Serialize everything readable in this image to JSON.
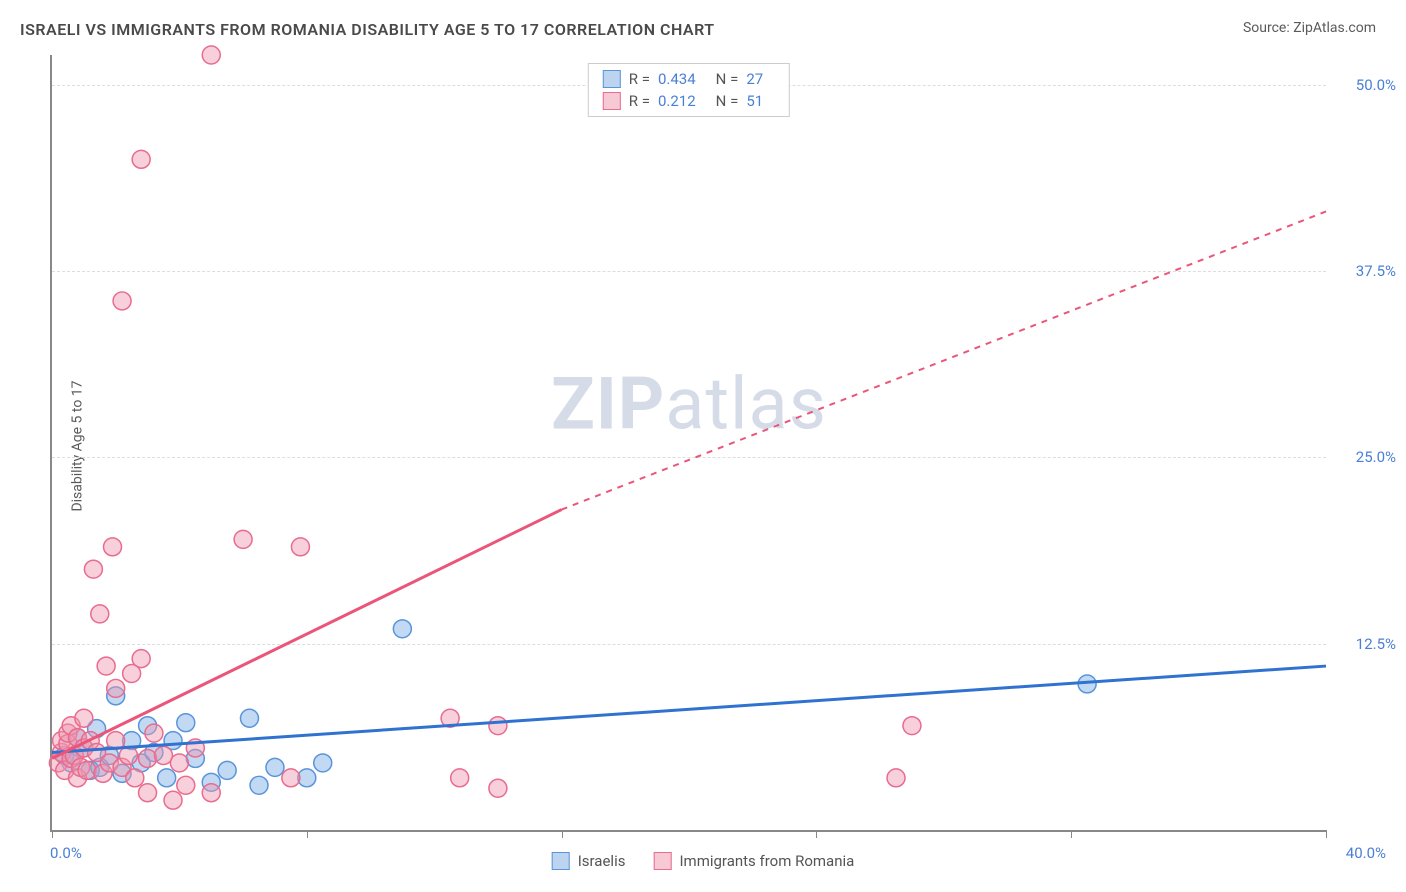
{
  "title": "ISRAELI VS IMMIGRANTS FROM ROMANIA DISABILITY AGE 5 TO 17 CORRELATION CHART",
  "source_label": "Source: ",
  "source_name": "ZipAtlas.com",
  "y_axis_label": "Disability Age 5 to 17",
  "watermark_bold": "ZIP",
  "watermark_light": "atlas",
  "chart": {
    "type": "scatter",
    "xlim": [
      0,
      40
    ],
    "ylim": [
      0,
      52
    ],
    "x_tick_positions": [
      0,
      8,
      16,
      24,
      32,
      40
    ],
    "x_tick_labels_shown": {
      "0": "0.0%",
      "40": "40.0%"
    },
    "y_ticks": [
      12.5,
      25.0,
      37.5,
      50.0
    ],
    "y_tick_labels": [
      "12.5%",
      "25.0%",
      "37.5%",
      "50.0%"
    ],
    "grid_color": "#dddddd",
    "background_color": "#ffffff",
    "axis_color": "#888888",
    "tick_label_color": "#4a7fd6",
    "stats_legend": [
      {
        "swatch_fill": "#bcd4f0",
        "swatch_border": "#5a94da",
        "r_label": "R =",
        "r_value": "0.434",
        "n_label": "N =",
        "n_value": "27"
      },
      {
        "swatch_fill": "#f7c9d4",
        "swatch_border": "#e96b8d",
        "r_label": "R =",
        "r_value": "0.212",
        "n_label": "N =",
        "n_value": "51"
      }
    ],
    "bottom_legend": [
      {
        "swatch_fill": "#bcd4f0",
        "swatch_border": "#5a94da",
        "label": "Israelis"
      },
      {
        "swatch_fill": "#f7c9d4",
        "swatch_border": "#e96b8d",
        "label": "Immigrants from Romania"
      }
    ],
    "series": [
      {
        "name": "israelis",
        "marker_fill": "rgba(120,170,230,0.45)",
        "marker_stroke": "#5a94da",
        "marker_radius": 9,
        "trend_color": "#2f72d0",
        "trend_width": 3,
        "trend_solid_start": [
          0,
          5.2
        ],
        "trend_solid_end": [
          40,
          11.0
        ],
        "trend_dashed_end": null,
        "points": [
          [
            0.4,
            5.0
          ],
          [
            0.6,
            4.5
          ],
          [
            0.8,
            6.2
          ],
          [
            1.0,
            5.5
          ],
          [
            1.2,
            4.0
          ],
          [
            1.4,
            6.8
          ],
          [
            1.5,
            4.2
          ],
          [
            1.8,
            5.0
          ],
          [
            2.0,
            9.0
          ],
          [
            2.2,
            3.8
          ],
          [
            2.5,
            6.0
          ],
          [
            2.8,
            4.5
          ],
          [
            3.0,
            7.0
          ],
          [
            3.2,
            5.2
          ],
          [
            3.6,
            3.5
          ],
          [
            3.8,
            6.0
          ],
          [
            4.2,
            7.2
          ],
          [
            4.5,
            4.8
          ],
          [
            5.0,
            3.2
          ],
          [
            5.5,
            4.0
          ],
          [
            6.2,
            7.5
          ],
          [
            6.5,
            3.0
          ],
          [
            7.0,
            4.2
          ],
          [
            8.0,
            3.5
          ],
          [
            8.5,
            4.5
          ],
          [
            11.0,
            13.5
          ],
          [
            32.5,
            9.8
          ]
        ]
      },
      {
        "name": "immigrants_romania",
        "marker_fill": "rgba(240,150,175,0.45)",
        "marker_stroke": "#e96b8d",
        "marker_radius": 9,
        "trend_color": "#ea5579",
        "trend_width": 3,
        "trend_solid_start": [
          0,
          4.8
        ],
        "trend_solid_end": [
          16,
          21.5
        ],
        "trend_dashed_end": [
          40,
          41.5
        ],
        "points": [
          [
            0.2,
            4.5
          ],
          [
            0.3,
            5.2
          ],
          [
            0.3,
            6.0
          ],
          [
            0.4,
            4.0
          ],
          [
            0.5,
            5.8
          ],
          [
            0.5,
            6.5
          ],
          [
            0.6,
            4.8
          ],
          [
            0.6,
            7.0
          ],
          [
            0.7,
            5.0
          ],
          [
            0.8,
            3.5
          ],
          [
            0.8,
            6.2
          ],
          [
            0.9,
            4.2
          ],
          [
            1.0,
            5.5
          ],
          [
            1.0,
            7.5
          ],
          [
            1.1,
            4.0
          ],
          [
            1.2,
            6.0
          ],
          [
            1.3,
            17.5
          ],
          [
            1.4,
            5.2
          ],
          [
            1.5,
            14.5
          ],
          [
            1.6,
            3.8
          ],
          [
            1.7,
            11.0
          ],
          [
            1.8,
            4.5
          ],
          [
            1.9,
            19.0
          ],
          [
            2.0,
            6.0
          ],
          [
            2.0,
            9.5
          ],
          [
            2.2,
            4.2
          ],
          [
            2.2,
            35.5
          ],
          [
            2.4,
            5.0
          ],
          [
            2.5,
            10.5
          ],
          [
            2.6,
            3.5
          ],
          [
            2.8,
            11.5
          ],
          [
            2.8,
            45.0
          ],
          [
            3.0,
            4.8
          ],
          [
            3.0,
            2.5
          ],
          [
            3.2,
            6.5
          ],
          [
            3.5,
            5.0
          ],
          [
            3.8,
            2.0
          ],
          [
            4.0,
            4.5
          ],
          [
            4.2,
            3.0
          ],
          [
            4.5,
            5.5
          ],
          [
            5.0,
            52.0
          ],
          [
            5.0,
            2.5
          ],
          [
            6.0,
            19.5
          ],
          [
            7.5,
            3.5
          ],
          [
            7.8,
            19.0
          ],
          [
            12.5,
            7.5
          ],
          [
            12.8,
            3.5
          ],
          [
            14.0,
            7.0
          ],
          [
            14.0,
            2.8
          ],
          [
            26.5,
            3.5
          ],
          [
            27.0,
            7.0
          ]
        ]
      }
    ]
  }
}
